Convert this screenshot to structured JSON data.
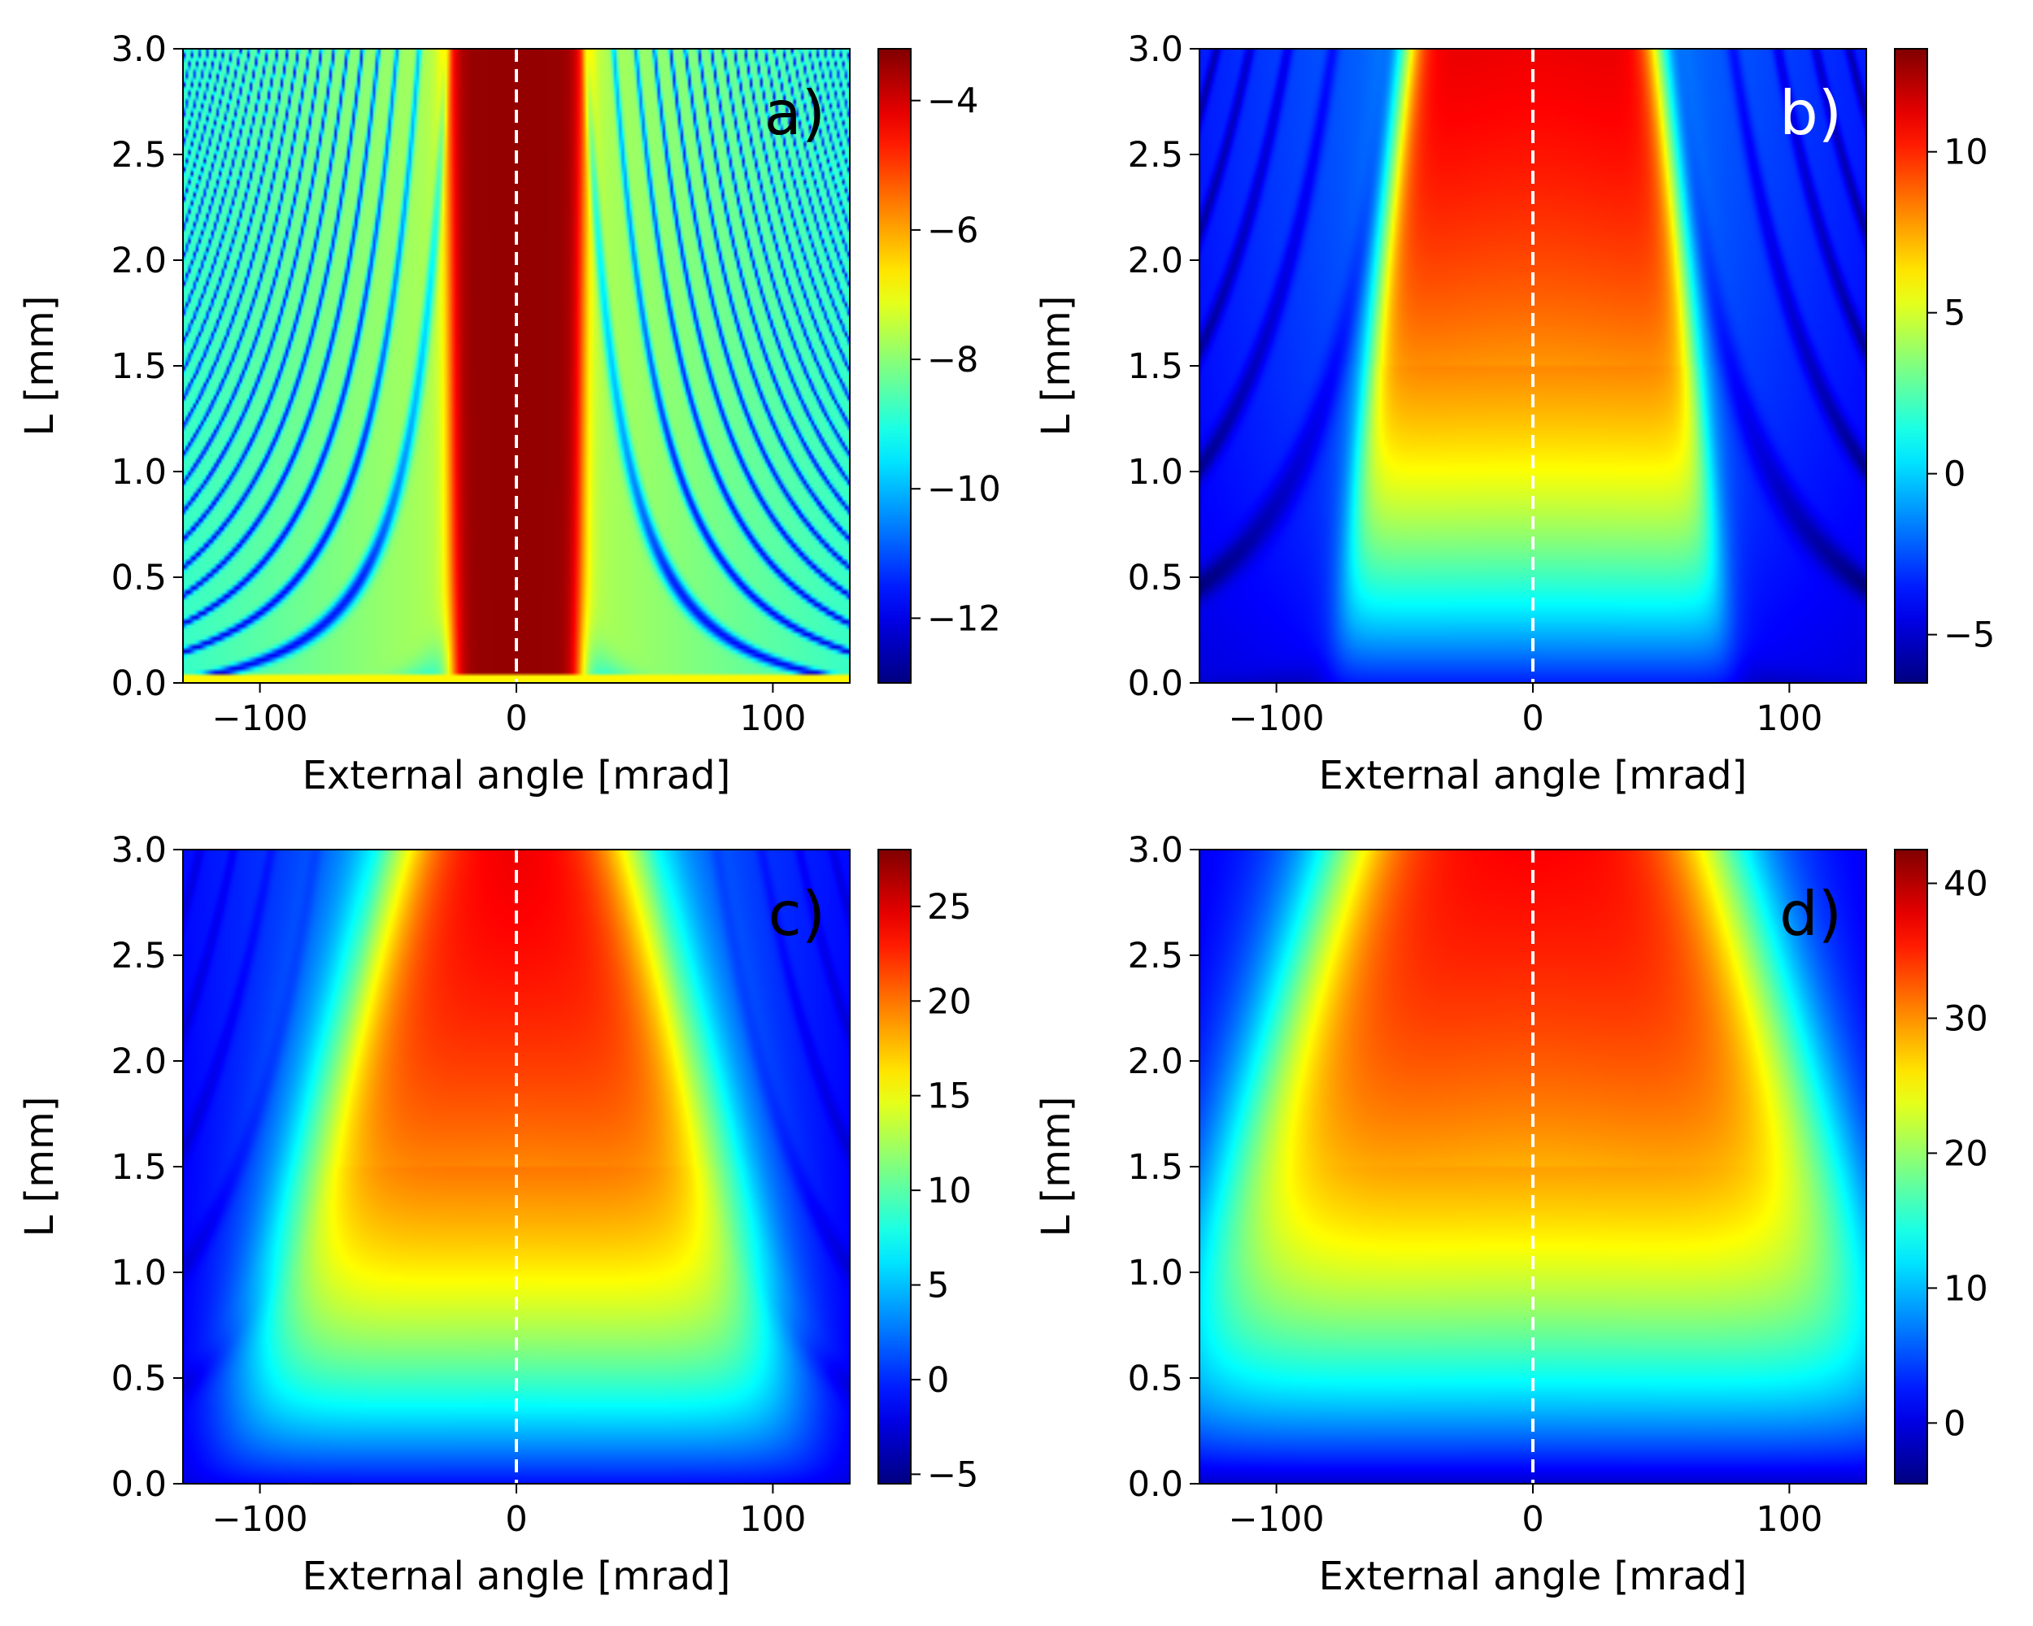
{
  "figure": {
    "type": "heatmap-grid",
    "colormap": "jet"
  },
  "chart_data": [
    {
      "type": "heatmap",
      "panel": "a)",
      "panel_label_color": "#000000",
      "xlabel": "External angle [mrad]",
      "ylabel": "L [mm]",
      "xlim": [
        -130,
        130
      ],
      "ylim": [
        0,
        3
      ],
      "xticks": [
        -100,
        0,
        100
      ],
      "xtick_labels": [
        "−100",
        "0",
        "100"
      ],
      "yticks": [
        0,
        0.5,
        1,
        1.5,
        2,
        2.5,
        3
      ],
      "ytick_labels": [
        "0.0",
        "0.5",
        "1.0",
        "1.5",
        "2.0",
        "2.5",
        "3.0"
      ],
      "colorbar": {
        "range": [
          -13,
          -3.2
        ],
        "ticks": [
          -12,
          -10,
          -8,
          -6,
          -4
        ],
        "tick_labels": [
          "−12",
          "−10",
          "−8",
          "−6",
          "−4"
        ]
      },
      "reference_line": {
        "x": 0,
        "style": "dashed",
        "color": "#ffffff"
      },
      "pattern": "fringes",
      "profile": {
        "lower": -7.3,
        "upper": -3.4,
        "half_width": 25,
        "width_growth": 0.5,
        "edge": 2,
        "fringe_spacing": 0.25,
        "fringe_depth": 3.5,
        "far_slope": 6,
        "tilt": 0.5
      }
    },
    {
      "type": "heatmap",
      "panel": "b)",
      "panel_label_color": "#ffffff",
      "xlabel": "External angle [mrad]",
      "ylabel": "L [mm]",
      "xlim": [
        -130,
        130
      ],
      "ylim": [
        0,
        3
      ],
      "xticks": [
        -100,
        0,
        100
      ],
      "xtick_labels": [
        "−100",
        "0",
        "100"
      ],
      "yticks": [
        0,
        0.5,
        1,
        1.5,
        2,
        2.5,
        3
      ],
      "ytick_labels": [
        "0.0",
        "0.5",
        "1.0",
        "1.5",
        "2.0",
        "2.5",
        "3.0"
      ],
      "colorbar": {
        "range": [
          -6.5,
          13.2
        ],
        "ticks": [
          -5,
          0,
          5,
          10
        ],
        "tick_labels": [
          "−5",
          "0",
          "5",
          "10"
        ]
      },
      "reference_line": {
        "x": 0,
        "style": "dashed",
        "color": "#ffffff"
      },
      "pattern": "gain",
      "profile": {
        "peak": 13,
        "base": -3.5,
        "floor": -4,
        "half_width": 80,
        "width_shrink": 10,
        "edge": 10,
        "L_scale": 1.2,
        "fringes": 1.5,
        "wing_low": -5.5
      }
    },
    {
      "type": "heatmap",
      "panel": "c)",
      "panel_label_color": "#000000",
      "xlabel": "External angle [mrad]",
      "ylabel": "L [mm]",
      "xlim": [
        -130,
        130
      ],
      "ylim": [
        0,
        3
      ],
      "xticks": [
        -100,
        0,
        100
      ],
      "xtick_labels": [
        "−100",
        "0",
        "100"
      ],
      "yticks": [
        0,
        0.5,
        1,
        1.5,
        2,
        2.5,
        3
      ],
      "ytick_labels": [
        "0.0",
        "0.5",
        "1.0",
        "1.5",
        "2.0",
        "2.5",
        "3.0"
      ],
      "colorbar": {
        "range": [
          -5.5,
          28
        ],
        "ticks": [
          -5,
          0,
          5,
          10,
          15,
          20,
          25
        ],
        "tick_labels": [
          "−5",
          "0",
          "5",
          "10",
          "15",
          "20",
          "25"
        ]
      },
      "reference_line": {
        "x": 0,
        "style": "dashed",
        "color": "#ffffff"
      },
      "pattern": "gain",
      "profile": {
        "peak": 27.5,
        "base": -1,
        "floor": -3,
        "half_width": 125,
        "width_shrink": 25,
        "edge": 30,
        "L_scale": 1.1,
        "fringes": 1,
        "wing_low": -4.5
      }
    },
    {
      "type": "heatmap",
      "panel": "d)",
      "panel_label_color": "#000000",
      "xlabel": "External angle [mrad]",
      "ylabel": "L [mm]",
      "xlim": [
        -130,
        130
      ],
      "ylim": [
        0,
        3
      ],
      "xticks": [
        -100,
        0,
        100
      ],
      "xtick_labels": [
        "−100",
        "0",
        "100"
      ],
      "yticks": [
        0,
        0.5,
        1,
        1.5,
        2,
        2.5,
        3
      ],
      "ytick_labels": [
        "0.0",
        "0.5",
        "1.0",
        "1.5",
        "2.0",
        "2.5",
        "3.0"
      ],
      "colorbar": {
        "range": [
          -4.5,
          42.5
        ],
        "ticks": [
          0,
          10,
          20,
          30,
          40
        ],
        "tick_labels": [
          "0",
          "10",
          "20",
          "30",
          "40"
        ]
      },
      "reference_line": {
        "x": 0,
        "style": "dashed",
        "color": "#ffffff"
      },
      "pattern": "gain",
      "profile": {
        "peak": 42,
        "base": -1,
        "floor": -3,
        "half_width": 170,
        "width_shrink": 30,
        "edge": 40,
        "L_scale": 1.2,
        "fringes": 0,
        "wing_low": -3.5
      }
    }
  ]
}
